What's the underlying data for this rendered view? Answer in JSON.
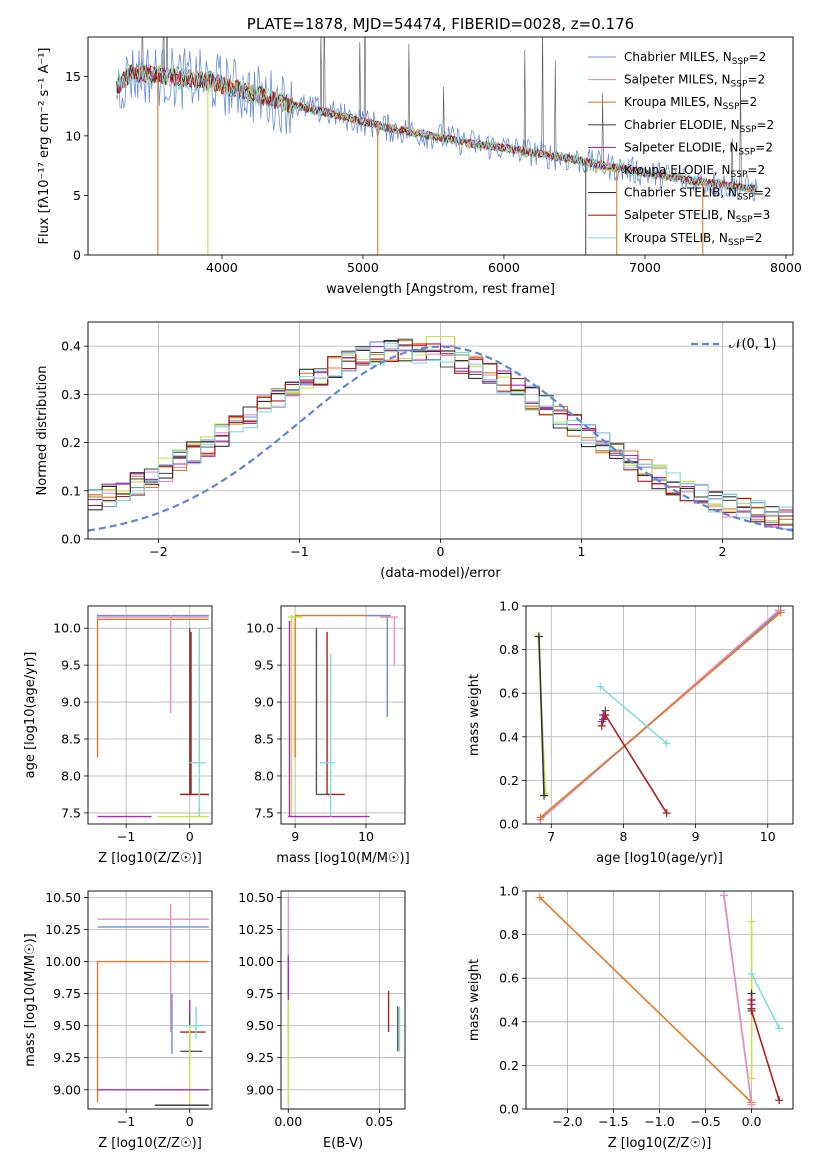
{
  "figure": {
    "colors": {
      "Chabrier MILES": "#6a8fd8",
      "Salpeter MILES": "#e88fbf",
      "Kroupa MILES": "#e07b28",
      "Chabrier ELODIE": "#555555",
      "Salpeter ELODIE": "#a82ab8",
      "Kroupa ELODIE": "#c8e04a",
      "Chabrier STELIB": "#333333",
      "Salpeter STELIB": "#b01c1c",
      "Kroupa STELIB": "#80dcdc",
      "gaussian": "#5f86d6",
      "grid": "#b0b0b0"
    }
  },
  "chart_data": [
    {
      "id": "spectrum",
      "type": "line",
      "title": "PLATE=1878, MJD=54474, FIBERID=0028, z=0.176",
      "xlabel": "wavelength [Angstrom, rest frame]",
      "ylabel": "Flux [fλ10⁻¹⁷ erg cm⁻² s⁻¹ A⁻¹]",
      "xlim": [
        3050,
        8050
      ],
      "ylim": [
        0,
        18.3
      ],
      "xticks": [
        4000,
        5000,
        6000,
        7000,
        8000
      ],
      "yticks": [
        0,
        5,
        10,
        15
      ],
      "grid": false,
      "legend_position": "top-right",
      "continuum_x": [
        3250,
        3350,
        3500,
        3700,
        3900,
        4000,
        4200,
        4500,
        4800,
        5000,
        5200,
        5500,
        5800,
        6000,
        6200,
        6500,
        6800,
        7000,
        7200,
        7500,
        7800
      ],
      "continuum_y": [
        14.0,
        15.2,
        15.2,
        14.8,
        14.6,
        14.3,
        13.6,
        12.6,
        11.8,
        11.2,
        10.6,
        10.0,
        9.3,
        9.0,
        8.6,
        8.0,
        7.3,
        6.9,
        6.5,
        6.0,
        5.5
      ],
      "series": [
        {
          "name": "Chabrier MILES, N_SSP=2",
          "sub": "SSP",
          "label_prefix": "Chabrier MILES, N",
          "label_suffix": "=2",
          "color_key": "Chabrier MILES"
        },
        {
          "name": "Salpeter MILES, N_SSP=2",
          "sub": "SSP",
          "label_prefix": "Salpeter MILES, N",
          "label_suffix": "=2",
          "color_key": "Salpeter MILES"
        },
        {
          "name": "Kroupa MILES, N_SSP=2",
          "sub": "SSP",
          "label_prefix": "Kroupa MILES, N",
          "label_suffix": "=2",
          "color_key": "Kroupa MILES"
        },
        {
          "name": "Chabrier ELODIE, N_SSP=2",
          "sub": "SSP",
          "label_prefix": "Chabrier ELODIE, N",
          "label_suffix": "=2",
          "color_key": "Chabrier ELODIE"
        },
        {
          "name": "Salpeter ELODIE, N_SSP=2",
          "sub": "SSP",
          "label_prefix": "Salpeter ELODIE, N",
          "label_suffix": "=2",
          "color_key": "Salpeter ELODIE"
        },
        {
          "name": "Kroupa ELODIE, N_SSP=2",
          "sub": "SSP",
          "label_prefix": "Kroupa ELODIE, N",
          "label_suffix": "=2",
          "color_key": "Kroupa ELODIE"
        },
        {
          "name": "Chabrier STELIB, N_SSP=2",
          "sub": "SSP",
          "label_prefix": "Chabrier STELIB, N",
          "label_suffix": "=2",
          "color_key": "Chabrier STELIB"
        },
        {
          "name": "Salpeter STELIB, N_SSP=3",
          "sub": "SSP",
          "label_prefix": "Salpeter STELIB, N",
          "label_suffix": "=3",
          "color_key": "Salpeter STELIB"
        },
        {
          "name": "Kroupa STELIB, N_SSP=2",
          "sub": "SSP",
          "label_prefix": "Kroupa STELIB, N",
          "label_suffix": "=2",
          "color_key": "Kroupa STELIB"
        }
      ],
      "dropouts": [
        {
          "x": 3545,
          "color_key": "Kroupa MILES"
        },
        {
          "x": 3900,
          "color_key": "Kroupa ELODIE"
        },
        {
          "x": 5105,
          "color_key": "Kroupa MILES"
        },
        {
          "x": 6580,
          "color_key": "Chabrier ELODIE"
        },
        {
          "x": 6800,
          "color_key": "Kroupa MILES"
        },
        {
          "x": 7410,
          "color_key": "Kroupa MILES"
        }
      ]
    },
    {
      "id": "residuals",
      "type": "histogram",
      "xlabel": "(data-model)/error",
      "ylabel": "Normed distribution",
      "xlim": [
        -2.5,
        2.5
      ],
      "ylim": [
        0,
        0.45
      ],
      "xticks": [
        -2,
        -1,
        0,
        1,
        2
      ],
      "yticks": [
        0.0,
        0.1,
        0.2,
        0.3,
        0.4
      ],
      "grid": true,
      "legend_position": "top-right",
      "reference_curve": {
        "name": "N(0,1)",
        "label": "𝒩(0, 1)",
        "type": "normal",
        "mean": 0,
        "sigma": 1
      },
      "bin_width": 0.1,
      "series_keys": [
        "Chabrier MILES",
        "Salpeter MILES",
        "Kroupa MILES",
        "Chabrier ELODIE",
        "Salpeter ELODIE",
        "Kroupa ELODIE",
        "Chabrier STELIB",
        "Salpeter STELIB",
        "Kroupa STELIB"
      ]
    },
    {
      "id": "age_vs_Z",
      "type": "scatter",
      "xlabel": "Z [log10(Z/Z☉)]",
      "ylabel": "age  [log10(age/yr)]",
      "xlim": [
        -1.6,
        0.35
      ],
      "ylim": [
        7.35,
        10.3
      ],
      "xticks": [
        -1,
        0
      ],
      "yticks": [
        7.5,
        8.0,
        8.5,
        9.0,
        9.5,
        10.0
      ],
      "grid": true,
      "points": [
        {
          "color_key": "Chabrier MILES",
          "x": -1.45,
          "y": 10.17,
          "x0": -1.45,
          "x1": 0.3,
          "y0": 10.15,
          "y1": 10.19
        },
        {
          "color_key": "Salpeter MILES",
          "x": -1.45,
          "y": 10.15,
          "x0": -1.45,
          "x1": 0.3,
          "y0": 10.13,
          "y1": 10.17
        },
        {
          "color_key": "Kroupa MILES",
          "x": -1.45,
          "y": 10.12,
          "x0": -1.45,
          "x1": 0.3,
          "y0": 8.25,
          "y1": 10.12
        },
        {
          "color_key": "Salpeter MILES",
          "x": -0.3,
          "y": 9.5,
          "x0": -0.3,
          "x1": -0.3,
          "y0": 8.85,
          "y1": 10.18
        },
        {
          "color_key": "Chabrier ELODIE",
          "x": 0.0,
          "y": 7.75,
          "x0": -0.15,
          "x1": 0.3,
          "y0": 7.75,
          "y1": 10.0
        },
        {
          "color_key": "Salpeter STELIB",
          "x": 0.02,
          "y": 7.75,
          "x0": -0.15,
          "x1": 0.3,
          "y0": 7.75,
          "y1": 9.95
        },
        {
          "color_key": "Kroupa STELIB",
          "x": 0.15,
          "y": 8.18,
          "x0": 0.0,
          "x1": 0.25,
          "y0": 7.45,
          "y1": 10.0
        },
        {
          "color_key": "Salpeter ELODIE",
          "x": -1.45,
          "y": 7.45,
          "x0": -1.45,
          "x1": -0.6,
          "y0": 7.45,
          "y1": 7.45
        },
        {
          "color_key": "Kroupa ELODIE",
          "x": -0.5,
          "y": 7.45,
          "x0": -0.5,
          "x1": 0.3,
          "y0": 7.45,
          "y1": 7.45
        }
      ]
    },
    {
      "id": "age_vs_mass",
      "type": "scatter",
      "xlabel": "mass [log10(M/M☉)]",
      "ylabel": "",
      "xlim": [
        8.8,
        10.55
      ],
      "ylim": [
        7.35,
        10.3
      ],
      "xticks": [
        9,
        10
      ],
      "yticks": [
        7.5,
        8.0,
        8.5,
        9.0,
        9.5,
        10.0
      ],
      "grid": true,
      "points": [
        {
          "color_key": "Kroupa MILES",
          "x": 9.0,
          "y": 10.17,
          "x0": 9.0,
          "x1": 10.3,
          "y0": 8.25,
          "y1": 10.17
        },
        {
          "color_key": "Kroupa ELODIE",
          "x": 8.95,
          "y": 10.15,
          "x0": 8.9,
          "x1": 9.1,
          "y0": 7.45,
          "y1": 10.18
        },
        {
          "color_key": "Salpeter ELODIE",
          "x": 8.92,
          "y": 7.45,
          "x0": 8.9,
          "x1": 10.05,
          "y0": 7.45,
          "y1": 10.1
        },
        {
          "color_key": "Chabrier MILES",
          "x": 10.3,
          "y": 10.17,
          "x0": 10.0,
          "x1": 10.35,
          "y0": 8.8,
          "y1": 10.18
        },
        {
          "color_key": "Salpeter MILES",
          "x": 10.4,
          "y": 10.15,
          "x0": 10.2,
          "x1": 10.45,
          "y0": 9.5,
          "y1": 10.15
        },
        {
          "color_key": "Chabrier ELODIE",
          "x": 9.3,
          "y": 7.75,
          "x0": 9.3,
          "x1": 9.55,
          "y0": 7.75,
          "y1": 10.0
        },
        {
          "color_key": "Salpeter STELIB",
          "x": 9.45,
          "y": 7.75,
          "x0": 9.45,
          "x1": 9.7,
          "y0": 7.75,
          "y1": 9.95
        },
        {
          "color_key": "Kroupa STELIB",
          "x": 9.5,
          "y": 8.18,
          "x0": 9.35,
          "x1": 9.55,
          "y0": 7.45,
          "y1": 9.65
        }
      ]
    },
    {
      "id": "weight_vs_age",
      "type": "line",
      "xlabel": "age  [log10(age/yr)]",
      "ylabel": "mass weight",
      "xlim": [
        6.65,
        10.35
      ],
      "ylim": [
        0,
        1.0
      ],
      "xticks": [
        7,
        8,
        9,
        10
      ],
      "yticks": [
        0.0,
        0.2,
        0.4,
        0.6,
        0.8,
        1.0
      ],
      "grid": true,
      "series": [
        {
          "color_key": "Chabrier MILES",
          "x": [
            6.85,
            10.18
          ],
          "y": [
            0.02,
            0.98
          ]
        },
        {
          "color_key": "Salpeter MILES",
          "x": [
            6.85,
            10.15
          ],
          "y": [
            0.02,
            0.98
          ]
        },
        {
          "color_key": "Kroupa MILES",
          "x": [
            6.85,
            10.18
          ],
          "y": [
            0.03,
            0.97
          ]
        },
        {
          "color_key": "Chabrier ELODIE",
          "x": [
            7.75,
            7.72,
            7.72
          ],
          "y": [
            0.52,
            0.48,
            0.5
          ]
        },
        {
          "color_key": "Salpeter ELODIE",
          "x": [
            7.7,
            7.72
          ],
          "y": [
            0.47,
            0.5
          ]
        },
        {
          "color_key": "Kroupa ELODIE",
          "x": [
            6.82,
            6.92
          ],
          "y": [
            0.86,
            0.14
          ]
        },
        {
          "color_key": "Chabrier STELIB",
          "x": [
            6.83,
            6.9
          ],
          "y": [
            0.86,
            0.13
          ]
        },
        {
          "color_key": "Salpeter STELIB",
          "x": [
            7.7,
            7.75,
            8.6
          ],
          "y": [
            0.45,
            0.5,
            0.05
          ]
        },
        {
          "color_key": "Kroupa STELIB",
          "x": [
            7.68,
            8.6
          ],
          "y": [
            0.63,
            0.37
          ]
        }
      ]
    },
    {
      "id": "mass_vs_Z",
      "type": "scatter",
      "xlabel": "Z [log10(Z/Z☉)]",
      "ylabel": "mass [log10(M/M☉)]",
      "xlim": [
        -1.6,
        0.35
      ],
      "ylim": [
        8.85,
        10.55
      ],
      "xticks": [
        -1,
        0
      ],
      "yticks": [
        9.0,
        9.25,
        9.5,
        9.75,
        10.0,
        10.25,
        10.5
      ],
      "grid": true,
      "points": [
        {
          "color_key": "Salpeter MILES",
          "x": -1.45,
          "y": 10.33,
          "x0": -1.45,
          "x1": 0.3,
          "y0": 10.33,
          "y1": 10.33
        },
        {
          "color_key": "Chabrier MILES",
          "x": -1.45,
          "y": 10.27,
          "x0": -1.45,
          "x1": 0.3,
          "y0": 10.27,
          "y1": 10.27
        },
        {
          "color_key": "Kroupa MILES",
          "x": -1.45,
          "y": 10.0,
          "x0": -1.45,
          "x1": 0.3,
          "y0": 8.9,
          "y1": 10.0
        },
        {
          "color_key": "Salpeter MILES",
          "x": -0.3,
          "y": 10.1,
          "x0": -0.3,
          "x1": -0.3,
          "y0": 9.45,
          "y1": 10.45
        },
        {
          "color_key": "Chabrier MILES",
          "x": -0.28,
          "y": 9.5,
          "x0": -0.28,
          "x1": -0.28,
          "y0": 9.28,
          "y1": 9.75
        },
        {
          "color_key": "Salpeter ELODIE",
          "x": -0.0,
          "y": 9.5,
          "x0": 0.0,
          "x1": 0.0,
          "y0": 9.3,
          "y1": 9.7
        },
        {
          "color_key": "Chabrier ELODIE",
          "x": 0.0,
          "y": 9.3,
          "x0": -0.15,
          "x1": 0.2,
          "y0": 9.3,
          "y1": 9.6
        },
        {
          "color_key": "Salpeter STELIB",
          "x": 0.0,
          "y": 9.45,
          "x0": -0.15,
          "x1": 0.25,
          "y0": 9.45,
          "y1": 9.45
        },
        {
          "color_key": "Kroupa STELIB",
          "x": 0.1,
          "y": 9.5,
          "x0": -0.1,
          "x1": 0.25,
          "y0": 9.4,
          "y1": 9.65
        },
        {
          "color_key": "Kroupa ELODIE",
          "x": 0.0,
          "y": 9.0,
          "x0": -0.55,
          "x1": 0.3,
          "y0": 8.88,
          "y1": 9.5
        },
        {
          "color_key": "Salpeter ELODIE",
          "x": -1.45,
          "y": 9.0,
          "x0": -1.45,
          "x1": 0.3,
          "y0": 9.0,
          "y1": 9.0
        },
        {
          "color_key": "Chabrier STELIB",
          "x": -0.3,
          "y": 8.88,
          "x0": -0.55,
          "x1": 0.3,
          "y0": 8.88,
          "y1": 8.88
        }
      ]
    },
    {
      "id": "mass_vs_ebv",
      "type": "scatter",
      "xlabel": "E(B-V)",
      "ylabel": "",
      "xlim": [
        -0.004,
        0.064
      ],
      "ylim": [
        8.85,
        10.55
      ],
      "xticks": [
        0.0,
        0.05
      ],
      "tick_labels": [
        "0.00",
        "0.05"
      ],
      "yticks": [
        9.0,
        9.25,
        9.5,
        9.75,
        10.0,
        10.25,
        10.5
      ],
      "grid": true,
      "points": [
        {
          "color_key": "Salpeter MILES",
          "x": 0.0,
          "y": 10.2,
          "x0": 0.0,
          "x1": 0.0,
          "y0": 9.8,
          "y1": 10.5
        },
        {
          "color_key": "Salpeter ELODIE",
          "x": 0.0,
          "y": 9.6,
          "x0": 0.0,
          "x1": 0.0,
          "y0": 9.45,
          "y1": 10.05
        },
        {
          "color_key": "Kroupa ELODIE",
          "x": 0.0,
          "y": 9.0,
          "x0": 0.0,
          "x1": 0.0,
          "y0": 8.88,
          "y1": 9.7
        },
        {
          "color_key": "Salpeter STELIB",
          "x": 0.055,
          "y": 9.6,
          "x0": 0.055,
          "x1": 0.055,
          "y0": 9.45,
          "y1": 9.77
        },
        {
          "color_key": "Chabrier ELODIE",
          "x": 0.06,
          "y": 9.5,
          "x0": 0.06,
          "x1": 0.06,
          "y0": 9.3,
          "y1": 9.65
        },
        {
          "color_key": "Kroupa STELIB",
          "x": 0.061,
          "y": 9.5,
          "x0": 0.061,
          "x1": 0.061,
          "y0": 9.3,
          "y1": 9.65
        }
      ]
    },
    {
      "id": "weight_vs_Z",
      "type": "line",
      "xlabel": "Z [log10(Z/Z☉)]",
      "ylabel": "mass weight",
      "xlim": [
        -2.45,
        0.45
      ],
      "ylim": [
        0,
        1.0
      ],
      "xticks": [
        -2.0,
        -1.5,
        -1.0,
        -0.5,
        0.0
      ],
      "tick_labels": [
        "−2.0",
        "−1.5",
        "−1.0",
        "−0.5",
        "0.0"
      ],
      "yticks": [
        0.0,
        0.2,
        0.4,
        0.6,
        0.8,
        1.0
      ],
      "grid": true,
      "series": [
        {
          "color_key": "Kroupa MILES",
          "x": [
            -2.3,
            0.0
          ],
          "y": [
            0.97,
            0.03
          ]
        },
        {
          "color_key": "Chabrier MILES",
          "x": [
            -0.3,
            0.0
          ],
          "y": [
            0.98,
            0.02
          ]
        },
        {
          "color_key": "Salpeter MILES",
          "x": [
            -0.3,
            0.0
          ],
          "y": [
            0.98,
            0.02
          ]
        },
        {
          "color_key": "Kroupa ELODIE",
          "x": [
            0.0,
            0.0
          ],
          "y": [
            0.86,
            0.14
          ]
        },
        {
          "color_key": "Chabrier STELIB",
          "x": [
            0.0,
            0.0
          ],
          "y": [
            0.53,
            0.46
          ]
        },
        {
          "color_key": "Salpeter ELODIE",
          "x": [
            0.0,
            0.0
          ],
          "y": [
            0.5,
            0.48
          ]
        },
        {
          "color_key": "Salpeter STELIB",
          "x": [
            0.0,
            0.0,
            0.3
          ],
          "y": [
            0.5,
            0.45,
            0.04
          ]
        },
        {
          "color_key": "Kroupa STELIB",
          "x": [
            0.0,
            0.3
          ],
          "y": [
            0.62,
            0.37
          ]
        }
      ]
    }
  ]
}
